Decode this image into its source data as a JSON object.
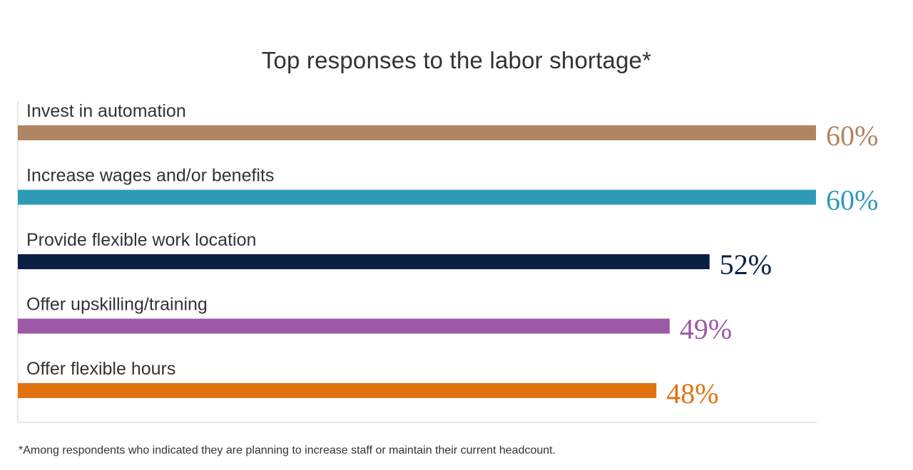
{
  "chart_data": {
    "type": "bar",
    "orientation": "horizontal",
    "title": "Top responses to the labor shortage*",
    "categories": [
      "Invest in automation",
      "Increase wages and/or benefits",
      "Provide flexible work location",
      "Offer upskilling/training",
      "Offer flexible hours"
    ],
    "values": [
      60,
      60,
      52,
      49,
      48
    ],
    "value_labels": [
      "60%",
      "60%",
      "52%",
      "49%",
      "48%"
    ],
    "colors": [
      "#b08562",
      "#2e9ab8",
      "#0a1f44",
      "#9b59a8",
      "#e07310"
    ],
    "xlim": [
      0,
      60
    ],
    "grid": false,
    "footnote": "*Among respondents who indicated they are planning to increase staff or maintain their current headcount."
  }
}
